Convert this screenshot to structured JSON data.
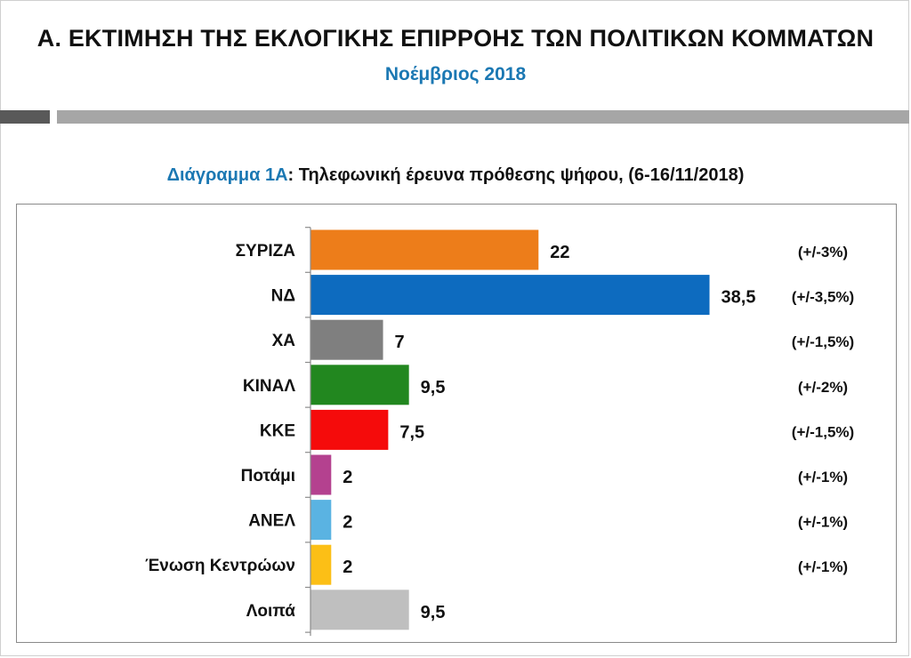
{
  "header": {
    "title": "Α. ΕΚΤΙΜΗΣΗ ΤΗΣ ΕΚΛΟΓΙΚΗΣ ΕΠΙΡΡΟΗΣ ΤΩΝ ΠΟΛΙΤΙΚΩΝ ΚΟΜΜΑΤΩΝ",
    "subtitle": "Νοέμβριος 2018"
  },
  "caption": {
    "prefix": "Διάγραμμα 1Α",
    "text": ": Τηλεφωνική έρευνα πρόθεσης ψήφου,  (6-16/11/2018)"
  },
  "chart_data": {
    "type": "bar",
    "orientation": "horizontal",
    "categories": [
      "ΣΥΡΙΖΑ",
      "ΝΔ",
      "ΧΑ",
      "ΚΙΝΑΛ",
      "ΚΚΕ",
      "Ποτάμι",
      "ΑΝΕΛ",
      "Ένωση Κεντρώων",
      "Λοιπά"
    ],
    "values": [
      22,
      38.5,
      7,
      9.5,
      7.5,
      2,
      2,
      2,
      9.5
    ],
    "value_labels": [
      "22",
      "38,5",
      "7",
      "9,5",
      "7,5",
      "2",
      "2",
      "2",
      "9,5"
    ],
    "margins": [
      "(+/-3%)",
      "(+/-3,5%)",
      "(+/-1,5%)",
      "(+/-2%)",
      "(+/-1,5%)",
      "(+/-1%)",
      "(+/-1%)",
      "(+/-1%)",
      ""
    ],
    "colors": [
      "#ed7d1a",
      "#0d6bbf",
      "#7f7f7f",
      "#22871f",
      "#f50b0b",
      "#b4418f",
      "#5ab3e2",
      "#fcbf16",
      "#bfbfbf"
    ],
    "xlim": [
      0,
      40
    ],
    "grid": false,
    "legend": "none"
  }
}
